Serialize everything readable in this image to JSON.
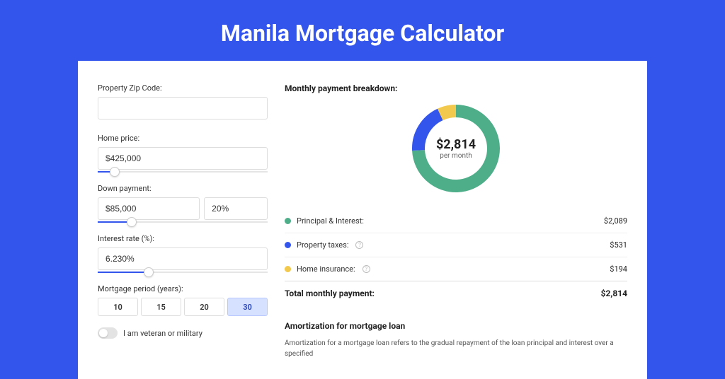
{
  "title": "Manila Mortgage Calculator",
  "form": {
    "zip": {
      "label": "Property Zip Code:",
      "value": ""
    },
    "home_price": {
      "label": "Home price:",
      "value": "$425,000",
      "slider_pct": 10
    },
    "down_payment": {
      "label": "Down payment:",
      "value": "$85,000",
      "pct_value": "20%",
      "slider_pct": 20
    },
    "interest_rate": {
      "label": "Interest rate (%):",
      "value": "6.230%",
      "slider_pct": 30
    },
    "period": {
      "label": "Mortgage period (years):",
      "options": [
        "10",
        "15",
        "20",
        "30"
      ],
      "active_index": 3
    },
    "veteran": {
      "label": "I am veteran or military",
      "checked": false
    }
  },
  "breakdown": {
    "title": "Monthly payment breakdown:",
    "center_value": "$2,814",
    "center_sub": "per month",
    "donut": {
      "type": "pie",
      "thickness": 18,
      "slices": [
        {
          "label": "Principal & Interest:",
          "value": "$2,089",
          "raw": 2089,
          "color": "#4fae8a"
        },
        {
          "label": "Property taxes:",
          "value": "$531",
          "raw": 531,
          "color": "#3455eb",
          "info": true
        },
        {
          "label": "Home insurance:",
          "value": "$194",
          "raw": 194,
          "color": "#f2c94c",
          "info": true
        }
      ],
      "background_color": "#ffffff"
    },
    "total": {
      "label": "Total monthly payment:",
      "value": "$2,814"
    }
  },
  "amortization": {
    "title": "Amortization for mortgage loan",
    "text": "Amortization for a mortgage loan refers to the gradual repayment of the loan principal and interest over a specified"
  },
  "colors": {
    "page_bg": "#3455eb",
    "banner_bg": "#2742b3",
    "card_bg": "#ffffff",
    "input_border": "#dddddd",
    "divider": "#eeeeee"
  }
}
